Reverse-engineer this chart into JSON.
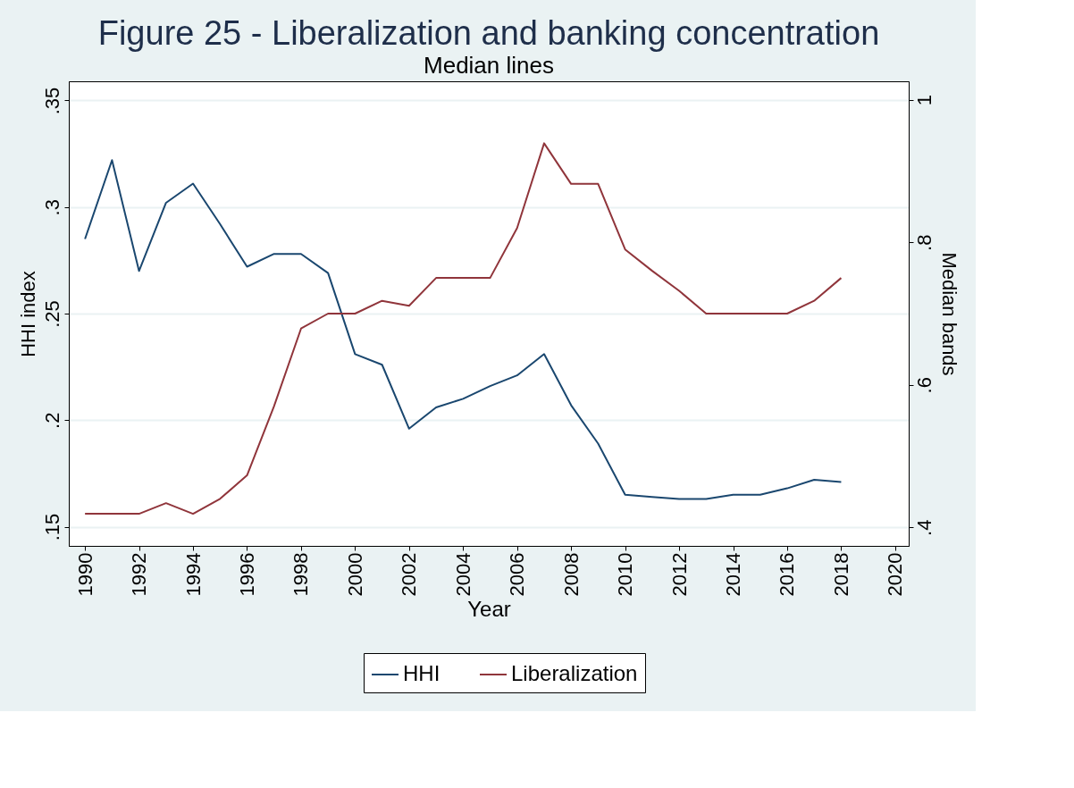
{
  "chart_data": {
    "type": "line",
    "title": "Figure 25 - Liberalization and banking concentration",
    "subtitle": "Median lines",
    "xlabel": "Year",
    "ylabel": "HHI index",
    "y2label": "Median bands",
    "x": [
      1990,
      1991,
      1992,
      1993,
      1994,
      1995,
      1996,
      1997,
      1998,
      1999,
      2000,
      2001,
      2002,
      2003,
      2004,
      2005,
      2006,
      2007,
      2008,
      2009,
      2010,
      2011,
      2012,
      2013,
      2014,
      2015,
      2016,
      2017,
      2018
    ],
    "series": [
      {
        "name": "HHI",
        "color": "#1a476f",
        "values": [
          0.285,
          0.322,
          0.27,
          0.302,
          0.311,
          0.292,
          0.272,
          0.278,
          0.278,
          0.269,
          0.231,
          0.226,
          0.196,
          0.206,
          0.21,
          0.216,
          0.221,
          0.231,
          0.207,
          0.189,
          0.165,
          0.164,
          0.163,
          0.163,
          0.165,
          0.165,
          0.168,
          0.172,
          0.171
        ]
      },
      {
        "name": "Liberalization",
        "color": "#90353b",
        "axis": "y2",
        "values": [
          0.419,
          0.419,
          0.419,
          0.434,
          0.419,
          0.44,
          0.473,
          0.57,
          0.679,
          0.7,
          0.7,
          0.718,
          0.711,
          0.75,
          0.75,
          0.75,
          0.82,
          0.939,
          0.882,
          0.882,
          0.79,
          0.76,
          0.732,
          0.7,
          0.7,
          0.7,
          0.7,
          0.718,
          0.75
        ]
      }
    ],
    "xlim": [
      1989.4,
      2020.5
    ],
    "xticks": [
      1990,
      1992,
      1994,
      1996,
      1998,
      2000,
      2002,
      2004,
      2006,
      2008,
      2010,
      2012,
      2014,
      2016,
      2018,
      2020
    ],
    "ylim": [
      0.141,
      0.359
    ],
    "yticks": [
      {
        "value": 0.15,
        "label": ".15"
      },
      {
        "value": 0.2,
        "label": ".2"
      },
      {
        "value": 0.25,
        "label": ".25"
      },
      {
        "value": 0.3,
        "label": ".3"
      },
      {
        "value": 0.35,
        "label": ".35"
      }
    ],
    "y2lim": [
      0.374,
      1.026
    ],
    "y2ticks": [
      {
        "value": 0.4,
        "label": ".4"
      },
      {
        "value": 0.6,
        "label": ".6"
      },
      {
        "value": 0.8,
        "label": ".8"
      },
      {
        "value": 1,
        "label": "1"
      }
    ],
    "grid": "y",
    "legend": "bottom",
    "line_style": "solid",
    "marker": "none"
  }
}
